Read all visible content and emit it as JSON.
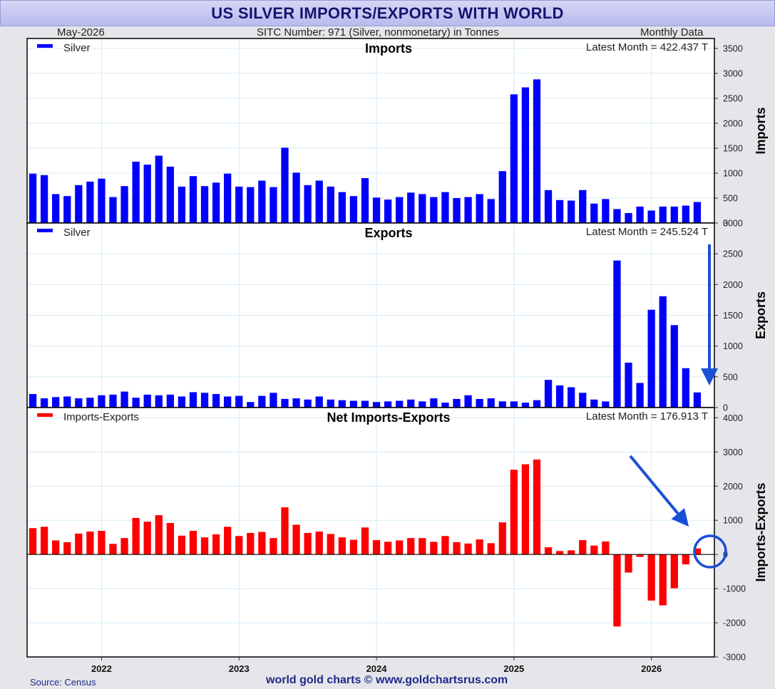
{
  "header": {
    "title": "US SILVER IMPORTS/EXPORTS WITH WORLD",
    "date": "May-2026",
    "sitc": "SITC Number: 971 (Silver, nonmonetary) in Tonnes",
    "frequency": "Monthly Data"
  },
  "footer": {
    "source": "Source: Census",
    "credit": "world gold charts © www.goldchartsrus.com"
  },
  "colors": {
    "blue": "#0000ff",
    "red": "#ff0000",
    "annotation": "#1a4fd6",
    "title_text": "#141470"
  },
  "chart_data": {
    "type": "bar",
    "x_start": "2021-07",
    "x_end": "2026-05",
    "x_tick_labels": [
      "2022",
      "2023",
      "2024",
      "2025",
      "2026"
    ],
    "grid": true,
    "panels": [
      {
        "title": "Imports",
        "legend": "Silver",
        "latest": "Latest Month = 422.437 T",
        "ylabel": "Imports",
        "color": "#0000ff",
        "ylim": [
          0,
          3700
        ],
        "yticks": [
          0,
          500,
          1000,
          1500,
          2000,
          2500,
          3000,
          3500
        ],
        "values": [
          990,
          960,
          580,
          540,
          760,
          830,
          890,
          520,
          740,
          1230,
          1170,
          1350,
          1130,
          730,
          940,
          740,
          810,
          990,
          730,
          720,
          850,
          720,
          1510,
          1010,
          760,
          850,
          730,
          620,
          540,
          900,
          510,
          470,
          520,
          610,
          580,
          520,
          620,
          500,
          520,
          580,
          480,
          1040,
          2580,
          2720,
          2880,
          660,
          460,
          450,
          660,
          390,
          480,
          280,
          200,
          330,
          250,
          330,
          330,
          350,
          422
        ]
      },
      {
        "title": "Exports",
        "legend": "Silver",
        "latest": "Latest Month = 245.524 T",
        "ylabel": "Exports",
        "color": "#0000ff",
        "ylim": [
          0,
          3000
        ],
        "yticks": [
          0,
          500,
          1000,
          1500,
          2000,
          2500,
          3000
        ],
        "values": [
          220,
          150,
          170,
          180,
          150,
          160,
          200,
          210,
          260,
          160,
          210,
          200,
          210,
          180,
          250,
          240,
          220,
          180,
          190,
          90,
          190,
          240,
          140,
          150,
          130,
          180,
          130,
          120,
          110,
          110,
          90,
          100,
          110,
          130,
          100,
          150,
          80,
          140,
          200,
          140,
          150,
          100,
          100,
          80,
          120,
          450,
          360,
          330,
          240,
          130,
          100,
          2390,
          730,
          400,
          1590,
          1810,
          1340,
          640,
          246
        ]
      },
      {
        "title": "Net Imports-Exports",
        "legend": "Imports-Exports",
        "latest": "Latest Month = 176.913 T",
        "ylabel": "Imports-Exports",
        "color": "#ff0000",
        "ylim": [
          -3000,
          4300
        ],
        "yticks": [
          -3000,
          -2000,
          -1000,
          0,
          1000,
          2000,
          3000,
          4000
        ],
        "values": [
          770,
          810,
          410,
          360,
          610,
          670,
          690,
          310,
          480,
          1070,
          960,
          1150,
          920,
          550,
          690,
          500,
          590,
          810,
          540,
          630,
          660,
          480,
          1380,
          870,
          630,
          670,
          600,
          500,
          430,
          790,
          420,
          370,
          410,
          480,
          480,
          370,
          540,
          360,
          320,
          440,
          330,
          940,
          2480,
          2640,
          2780,
          210,
          100,
          120,
          420,
          260,
          380,
          -2110,
          -530,
          -70,
          -1350,
          -1490,
          -990,
          -290,
          177
        ]
      }
    ],
    "annotations": [
      "arrow pointing to latest exports bar",
      "arrow pointing to latest net bar",
      "circle around latest net bar"
    ]
  }
}
